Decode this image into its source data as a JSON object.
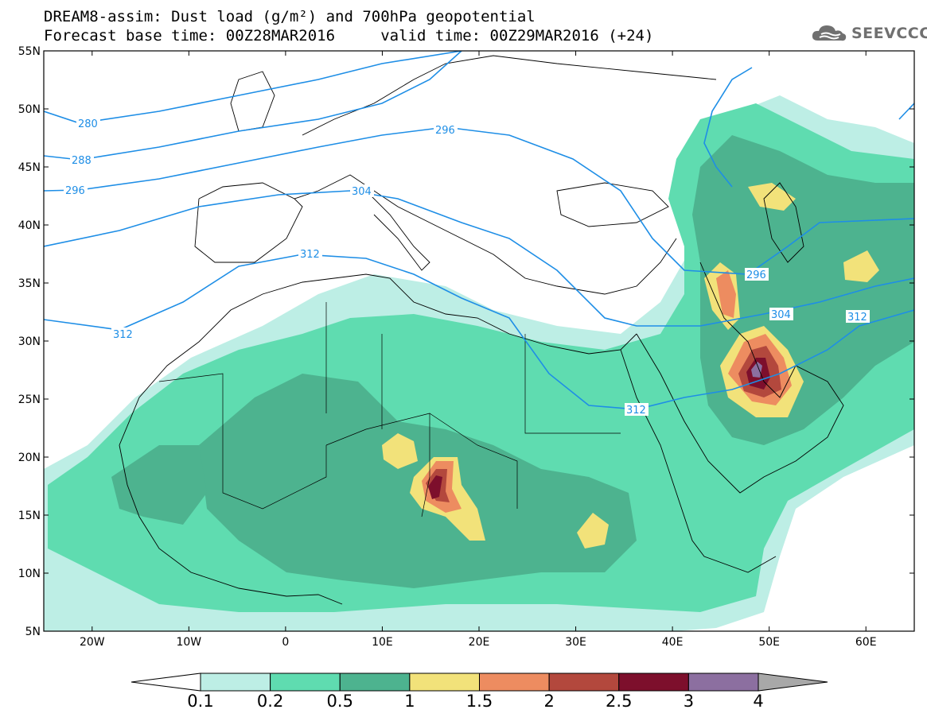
{
  "title": {
    "line1": "DREAM8-assim: Dust load (g/m²) and 700hPa geopotential",
    "line2": "Forecast base time: 00Z28MAR2016     valid time: 00Z29MAR2016 (+24)"
  },
  "logo": {
    "text": "SEEVCCC",
    "icon": "cloud-icon"
  },
  "map": {
    "lon_range": [
      -25,
      65
    ],
    "lat_range": [
      5,
      55
    ],
    "lat_labels": [
      "55N",
      "50N",
      "45N",
      "40N",
      "35N",
      "30N",
      "25N",
      "20N",
      "15N",
      "10N",
      "5N"
    ],
    "lon_labels": [
      "20W",
      "10W",
      "0",
      "10E",
      "20E",
      "30E",
      "40E",
      "50E",
      "60E"
    ]
  },
  "contours": {
    "color": "#1e8ee6",
    "labels": [
      "280",
      "288",
      "296",
      "304",
      "312",
      "312",
      "296",
      "304",
      "312",
      "312",
      "296"
    ]
  },
  "colorbar": {
    "ticks": [
      "0.1",
      "0.2",
      "0.5",
      "1",
      "1.5",
      "2",
      "2.5",
      "3",
      "4"
    ],
    "colors": [
      "#ffffff",
      "#bdeee5",
      "#5fdcb0",
      "#4db38f",
      "#f2e27a",
      "#ed8c60",
      "#b3483d",
      "#7d0f2c",
      "#8c6fa0",
      "#a8a8a8"
    ]
  }
}
